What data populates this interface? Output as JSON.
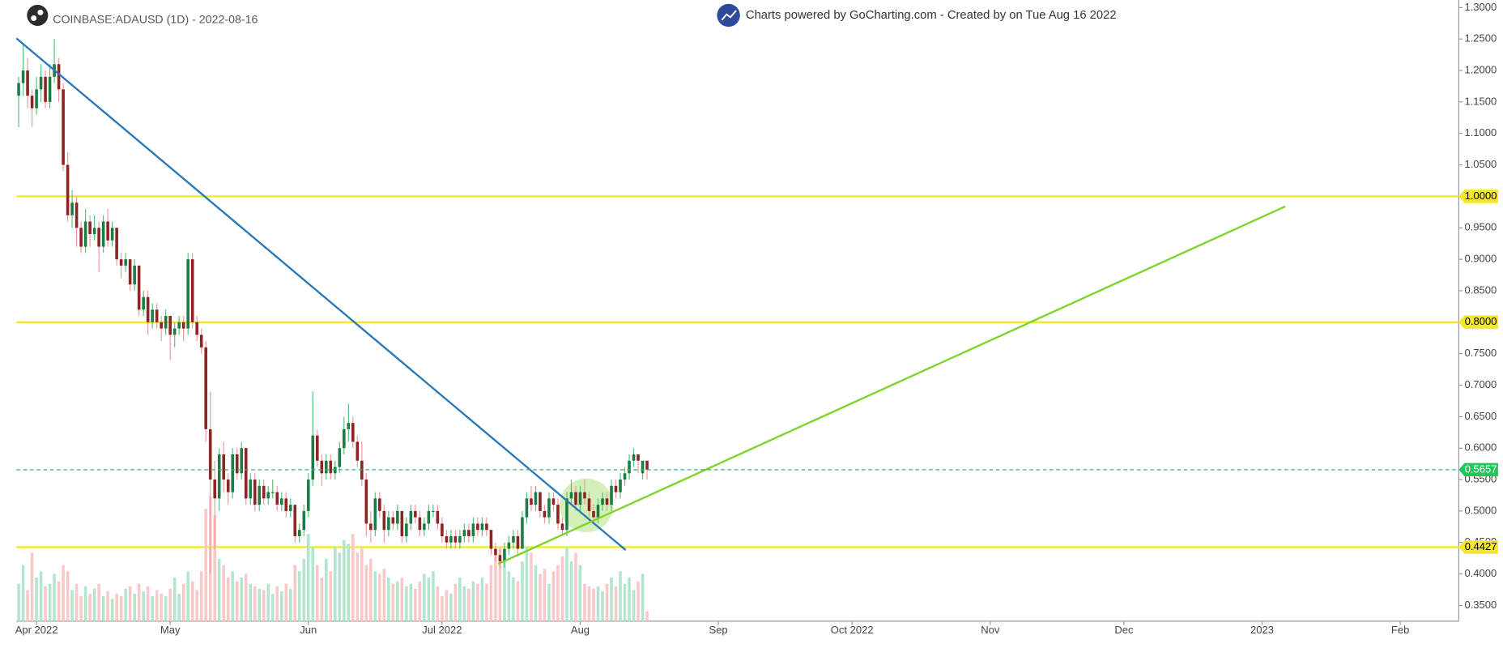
{
  "chart_data": {
    "type": "candlestick",
    "title": "COINBASE:ADAUSD (1D) - 2022-08-16",
    "subtitle": "Charts powered by GoCharting.com - Created by  on Tue Aug 16 2022",
    "colors": {
      "up": "#1e7b45",
      "down": "#8e2323",
      "up_wick": "#5cbf7a",
      "down_wick": "#ef9a9a",
      "up_volume": "#b4e6cf",
      "down_volume": "#f9c9c9"
    },
    "ohlc": [
      [
        1.16,
        1.19,
        1.11,
        1.18
      ],
      [
        1.18,
        1.24,
        1.16,
        1.2
      ],
      [
        1.2,
        1.22,
        1.14,
        1.16
      ],
      [
        1.16,
        1.17,
        1.11,
        1.14
      ],
      [
        1.14,
        1.19,
        1.13,
        1.17
      ],
      [
        1.17,
        1.21,
        1.15,
        1.19
      ],
      [
        1.19,
        1.2,
        1.14,
        1.15
      ],
      [
        1.15,
        1.21,
        1.14,
        1.19
      ],
      [
        1.19,
        1.25,
        1.18,
        1.21
      ],
      [
        1.21,
        1.22,
        1.15,
        1.17
      ],
      [
        1.17,
        1.18,
        1.04,
        1.05
      ],
      [
        1.05,
        1.07,
        0.96,
        0.97
      ],
      [
        0.97,
        1.01,
        0.95,
        0.99
      ],
      [
        0.99,
        1.0,
        0.92,
        0.95
      ],
      [
        0.95,
        0.96,
        0.91,
        0.92
      ],
      [
        0.92,
        0.98,
        0.91,
        0.96
      ],
      [
        0.96,
        0.97,
        0.92,
        0.94
      ],
      [
        0.94,
        0.97,
        0.93,
        0.95
      ],
      [
        0.95,
        0.96,
        0.88,
        0.92
      ],
      [
        0.92,
        0.97,
        0.91,
        0.96
      ],
      [
        0.96,
        0.98,
        0.92,
        0.93
      ],
      [
        0.93,
        0.96,
        0.92,
        0.95
      ],
      [
        0.95,
        0.95,
        0.89,
        0.9
      ],
      [
        0.9,
        0.91,
        0.87,
        0.89
      ],
      [
        0.89,
        0.91,
        0.88,
        0.9
      ],
      [
        0.9,
        0.9,
        0.85,
        0.86
      ],
      [
        0.86,
        0.9,
        0.85,
        0.89
      ],
      [
        0.89,
        0.89,
        0.81,
        0.82
      ],
      [
        0.82,
        0.85,
        0.81,
        0.84
      ],
      [
        0.84,
        0.85,
        0.78,
        0.8
      ],
      [
        0.8,
        0.83,
        0.79,
        0.82
      ],
      [
        0.82,
        0.83,
        0.79,
        0.8
      ],
      [
        0.8,
        0.81,
        0.77,
        0.79
      ],
      [
        0.79,
        0.82,
        0.78,
        0.81
      ],
      [
        0.81,
        0.81,
        0.74,
        0.78
      ],
      [
        0.78,
        0.8,
        0.76,
        0.79
      ],
      [
        0.79,
        0.81,
        0.78,
        0.8
      ],
      [
        0.8,
        0.81,
        0.77,
        0.79
      ],
      [
        0.79,
        0.91,
        0.78,
        0.9
      ],
      [
        0.9,
        0.91,
        0.79,
        0.8
      ],
      [
        0.8,
        0.81,
        0.77,
        0.78
      ],
      [
        0.78,
        0.79,
        0.75,
        0.76
      ],
      [
        0.76,
        0.77,
        0.61,
        0.63
      ],
      [
        0.63,
        0.69,
        0.4,
        0.55
      ],
      [
        0.55,
        0.58,
        0.44,
        0.52
      ],
      [
        0.52,
        0.6,
        0.5,
        0.59
      ],
      [
        0.59,
        0.61,
        0.53,
        0.55
      ],
      [
        0.55,
        0.56,
        0.51,
        0.53
      ],
      [
        0.53,
        0.6,
        0.52,
        0.59
      ],
      [
        0.59,
        0.6,
        0.55,
        0.56
      ],
      [
        0.56,
        0.61,
        0.55,
        0.6
      ],
      [
        0.6,
        0.6,
        0.51,
        0.52
      ],
      [
        0.52,
        0.56,
        0.51,
        0.55
      ],
      [
        0.55,
        0.56,
        0.5,
        0.51
      ],
      [
        0.51,
        0.55,
        0.5,
        0.54
      ],
      [
        0.54,
        0.55,
        0.51,
        0.52
      ],
      [
        0.52,
        0.54,
        0.51,
        0.53
      ],
      [
        0.53,
        0.55,
        0.52,
        0.53
      ],
      [
        0.53,
        0.54,
        0.5,
        0.51
      ],
      [
        0.51,
        0.53,
        0.5,
        0.52
      ],
      [
        0.52,
        0.53,
        0.49,
        0.5
      ],
      [
        0.5,
        0.52,
        0.49,
        0.51
      ],
      [
        0.51,
        0.51,
        0.45,
        0.46
      ],
      [
        0.46,
        0.48,
        0.45,
        0.47
      ],
      [
        0.47,
        0.51,
        0.46,
        0.5
      ],
      [
        0.5,
        0.56,
        0.49,
        0.55
      ],
      [
        0.55,
        0.69,
        0.54,
        0.62
      ],
      [
        0.62,
        0.63,
        0.57,
        0.58
      ],
      [
        0.58,
        0.59,
        0.54,
        0.56
      ],
      [
        0.56,
        0.59,
        0.55,
        0.58
      ],
      [
        0.58,
        0.59,
        0.55,
        0.56
      ],
      [
        0.56,
        0.58,
        0.55,
        0.57
      ],
      [
        0.57,
        0.61,
        0.56,
        0.6
      ],
      [
        0.6,
        0.65,
        0.59,
        0.63
      ],
      [
        0.63,
        0.67,
        0.61,
        0.64
      ],
      [
        0.64,
        0.65,
        0.6,
        0.61
      ],
      [
        0.61,
        0.62,
        0.57,
        0.58
      ],
      [
        0.58,
        0.61,
        0.54,
        0.55
      ],
      [
        0.55,
        0.56,
        0.46,
        0.48
      ],
      [
        0.48,
        0.5,
        0.45,
        0.47
      ],
      [
        0.47,
        0.53,
        0.46,
        0.52
      ],
      [
        0.52,
        0.53,
        0.49,
        0.5
      ],
      [
        0.5,
        0.51,
        0.45,
        0.47
      ],
      [
        0.47,
        0.5,
        0.46,
        0.49
      ],
      [
        0.49,
        0.5,
        0.47,
        0.48
      ],
      [
        0.48,
        0.51,
        0.47,
        0.5
      ],
      [
        0.5,
        0.5,
        0.45,
        0.46
      ],
      [
        0.46,
        0.49,
        0.45,
        0.48
      ],
      [
        0.48,
        0.51,
        0.47,
        0.5
      ],
      [
        0.5,
        0.51,
        0.48,
        0.49
      ],
      [
        0.49,
        0.5,
        0.46,
        0.47
      ],
      [
        0.47,
        0.49,
        0.46,
        0.48
      ],
      [
        0.48,
        0.51,
        0.47,
        0.5
      ],
      [
        0.5,
        0.51,
        0.49,
        0.5
      ],
      [
        0.5,
        0.51,
        0.47,
        0.48
      ],
      [
        0.48,
        0.49,
        0.45,
        0.46
      ],
      [
        0.46,
        0.47,
        0.44,
        0.45
      ],
      [
        0.45,
        0.47,
        0.44,
        0.46
      ],
      [
        0.46,
        0.47,
        0.44,
        0.45
      ],
      [
        0.45,
        0.47,
        0.44,
        0.46
      ],
      [
        0.46,
        0.48,
        0.45,
        0.47
      ],
      [
        0.47,
        0.48,
        0.45,
        0.46
      ],
      [
        0.46,
        0.49,
        0.45,
        0.48
      ],
      [
        0.48,
        0.49,
        0.46,
        0.47
      ],
      [
        0.47,
        0.49,
        0.46,
        0.48
      ],
      [
        0.48,
        0.49,
        0.46,
        0.47
      ],
      [
        0.47,
        0.47,
        0.43,
        0.44
      ],
      [
        0.44,
        0.45,
        0.42,
        0.43
      ],
      [
        0.43,
        0.44,
        0.41,
        0.42
      ],
      [
        0.42,
        0.45,
        0.41,
        0.44
      ],
      [
        0.44,
        0.46,
        0.43,
        0.45
      ],
      [
        0.45,
        0.47,
        0.44,
        0.46
      ],
      [
        0.46,
        0.47,
        0.43,
        0.44
      ],
      [
        0.44,
        0.5,
        0.44,
        0.49
      ],
      [
        0.49,
        0.53,
        0.48,
        0.52
      ],
      [
        0.52,
        0.54,
        0.5,
        0.51
      ],
      [
        0.51,
        0.54,
        0.5,
        0.53
      ],
      [
        0.53,
        0.53,
        0.49,
        0.5
      ],
      [
        0.5,
        0.51,
        0.48,
        0.49
      ],
      [
        0.49,
        0.53,
        0.48,
        0.52
      ],
      [
        0.52,
        0.53,
        0.5,
        0.51
      ],
      [
        0.51,
        0.52,
        0.47,
        0.48
      ],
      [
        0.48,
        0.49,
        0.46,
        0.47
      ],
      [
        0.47,
        0.53,
        0.46,
        0.52
      ],
      [
        0.52,
        0.55,
        0.51,
        0.53
      ],
      [
        0.53,
        0.54,
        0.5,
        0.51
      ],
      [
        0.51,
        0.54,
        0.5,
        0.53
      ],
      [
        0.53,
        0.55,
        0.51,
        0.52
      ],
      [
        0.52,
        0.53,
        0.49,
        0.5
      ],
      [
        0.5,
        0.51,
        0.48,
        0.49
      ],
      [
        0.49,
        0.52,
        0.48,
        0.51
      ],
      [
        0.51,
        0.53,
        0.5,
        0.52
      ],
      [
        0.52,
        0.53,
        0.5,
        0.51
      ],
      [
        0.51,
        0.55,
        0.5,
        0.54
      ],
      [
        0.54,
        0.55,
        0.52,
        0.53
      ],
      [
        0.53,
        0.56,
        0.52,
        0.55
      ],
      [
        0.55,
        0.57,
        0.54,
        0.56
      ],
      [
        0.56,
        0.59,
        0.55,
        0.58
      ],
      [
        0.58,
        0.6,
        0.57,
        0.59
      ],
      [
        0.59,
        0.59,
        0.56,
        0.58
      ],
      [
        0.56,
        0.58,
        0.55,
        0.58
      ],
      [
        0.58,
        0.58,
        0.55,
        0.5657
      ]
    ],
    "volume": [
      30,
      45,
      25,
      55,
      35,
      40,
      28,
      30,
      38,
      32,
      45,
      40,
      25,
      30,
      20,
      28,
      22,
      26,
      30,
      20,
      24,
      18,
      22,
      20,
      26,
      28,
      22,
      30,
      24,
      28,
      20,
      25,
      22,
      20,
      26,
      35,
      22,
      30,
      40,
      32,
      25,
      40,
      90,
      100,
      85,
      50,
      45,
      35,
      40,
      32,
      35,
      38,
      30,
      28,
      26,
      25,
      30,
      22,
      28,
      24,
      30,
      26,
      45,
      40,
      50,
      70,
      60,
      45,
      35,
      50,
      40,
      60,
      55,
      65,
      62,
      70,
      55,
      60,
      45,
      50,
      40,
      38,
      42,
      35,
      30,
      32,
      35,
      28,
      30,
      26,
      32,
      38,
      35,
      40,
      28,
      20,
      25,
      22,
      30,
      35,
      28,
      26,
      32,
      30,
      35,
      30,
      45,
      55,
      60,
      50,
      40,
      35,
      32,
      48,
      60,
      55,
      45,
      38,
      42,
      30,
      40,
      45,
      52,
      60,
      48,
      55,
      45,
      30,
      28,
      26,
      28,
      24,
      30,
      35,
      28,
      40,
      30,
      35,
      25,
      32,
      38,
      8
    ],
    "xlim": [
      -0.5,
      322.7
    ],
    "xticks": [
      {
        "value": 4,
        "label": "Apr 2022"
      },
      {
        "value": 34,
        "label": "May"
      },
      {
        "value": 65,
        "label": "Jun"
      },
      {
        "value": 95,
        "label": "Jul 2022"
      },
      {
        "value": 126,
        "label": "Aug"
      },
      {
        "value": 157,
        "label": "Sep"
      },
      {
        "value": 187,
        "label": "Oct 2022"
      },
      {
        "value": 218,
        "label": "Nov"
      },
      {
        "value": 248,
        "label": "Dec"
      },
      {
        "value": 279,
        "label": "2023"
      },
      {
        "value": 310,
        "label": "Feb"
      }
    ],
    "ylim": [
      0.325,
      1.312
    ],
    "yticks": [
      {
        "value": 0.35,
        "label": "0.3500"
      },
      {
        "value": 0.4,
        "label": "0.4000"
      },
      {
        "value": 0.45,
        "label": "0.4500"
      },
      {
        "value": 0.5,
        "label": "0.5000"
      },
      {
        "value": 0.55,
        "label": "0.5500"
      },
      {
        "value": 0.6,
        "label": "0.6000"
      },
      {
        "value": 0.65,
        "label": "0.6500"
      },
      {
        "value": 0.7,
        "label": "0.7000"
      },
      {
        "value": 0.75,
        "label": "0.7500"
      },
      {
        "value": 0.8,
        "label": "0.8000"
      },
      {
        "value": 0.85,
        "label": "0.8500"
      },
      {
        "value": 0.9,
        "label": "0.9000"
      },
      {
        "value": 0.95,
        "label": "0.9500"
      },
      {
        "value": 1.0,
        "label": "1.0000"
      },
      {
        "value": 1.05,
        "label": "1.0500"
      },
      {
        "value": 1.1,
        "label": "1.1000"
      },
      {
        "value": 1.15,
        "label": "1.1500"
      },
      {
        "value": 1.2,
        "label": "1.2000"
      },
      {
        "value": 1.25,
        "label": "1.2500"
      },
      {
        "value": 1.3,
        "label": "1.3000"
      }
    ],
    "levels": [
      {
        "value": 1.0,
        "label": "1.0000",
        "color": "#f3e82a"
      },
      {
        "value": 0.8,
        "label": "0.8000",
        "color": "#f3e82a"
      },
      {
        "value": 0.4427,
        "label": "0.4427",
        "color": "#f3e82a"
      }
    ],
    "last_price": {
      "value": 0.5657,
      "label": "0.5657",
      "color": "#22c55e"
    },
    "trendlines": [
      {
        "color": "#2a78b8",
        "points": [
          [
            -0.5,
            1.251
          ],
          [
            136.2,
            0.438
          ]
        ]
      },
      {
        "color": "#7fd32a",
        "points": [
          [
            107.6,
            0.416
          ],
          [
            284.2,
            0.984
          ]
        ]
      }
    ],
    "highlight": {
      "x": 127.4,
      "y": 0.509,
      "color": "#b9e58a"
    }
  }
}
